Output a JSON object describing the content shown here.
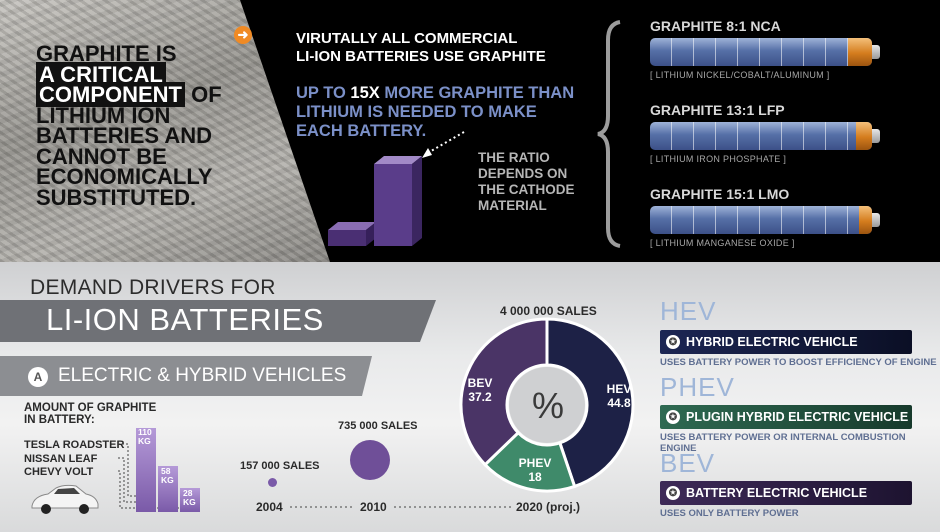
{
  "headline": {
    "part1": "GRAPHITE IS",
    "part2": "A CRITICAL",
    "part3": "COMPONENT",
    "part4": "OF",
    "part5": "LITHIUM ION BATTERIES AND CANNOT BE ECONOMICALLY SUBSTITUTED."
  },
  "intro": {
    "line1": "VIRUTALLY ALL COMMERCIAL",
    "line2": "LI-ION BATTERIES USE GRAPHITE",
    "up_to": "UP TO",
    "ratio_num": "15X",
    "more_text": "MORE GRAPHITE THAN",
    "line4": "LITHIUM IS NEEDED TO MAKE",
    "line5": "EACH BATTERY.",
    "ratio_note": "THE RATIO DEPENDS ON THE CATHODE MATERIAL"
  },
  "batteries": [
    {
      "title": "GRAPHITE 8:1 NCA",
      "chem": "LITHIUM NICKEL/COBALT/ALUMINUM",
      "graphite_fraction": 0.89
    },
    {
      "title": "GRAPHITE 13:1 LFP",
      "chem": "LITHIUM IRON PHOSPHATE",
      "graphite_fraction": 0.93
    },
    {
      "title": "GRAPHITE 15:1 LMO",
      "chem": "LITHIUM MANGANESE OXIDE",
      "graphite_fraction": 0.94
    }
  ],
  "demand": {
    "line1": "DEMAND DRIVERS FOR",
    "line2": "LI-ION BATTERIES"
  },
  "section_a": {
    "letter": "A",
    "title": "ELECTRIC & HYBRID VEHICLES"
  },
  "graphite_amount": {
    "title1": "AMOUNT OF GRAPHITE",
    "title2": "IN BATTERY:",
    "models": [
      "TESLA ROADSTER",
      "NISSAN LEAF",
      "CHEVY VOLT"
    ],
    "values": [
      "110\nKG",
      "58\nKG",
      "28\nKG"
    ]
  },
  "sales": {
    "s2004": "157 000 SALES",
    "s2010": "735 000 SALES",
    "s2020": "4 000 000 SALES",
    "years": [
      "2004",
      "2010",
      "2020 (proj.)"
    ]
  },
  "donut": {
    "center": "%",
    "segments": [
      {
        "label": "HEV",
        "value": "44.8",
        "color": "#1d2146"
      },
      {
        "label": "PHEV",
        "value": "18",
        "color": "#3f8a6a"
      },
      {
        "label": "BEV",
        "value": "37.2",
        "color": "#4a3466"
      }
    ]
  },
  "types": [
    {
      "abbr": "HEV",
      "name": "HYBRID ELECTRIC VEHICLE",
      "desc": "USES BATTERY POWER TO BOOST EFFICIENCY OF ENGINE",
      "color": "#1c2654"
    },
    {
      "abbr": "PHEV",
      "name": "PLUGIN HYBRID ELECTRIC VEHICLE",
      "desc": "USES BATTERY POWER OR INTERNAL COMBUSTION ENGINE",
      "color": "#2f6a52"
    },
    {
      "abbr": "BEV",
      "name": "BATTERY ELECTRIC VEHICLE",
      "desc": "USES ONLY BATTERY POWER",
      "color": "#3e2a58"
    }
  ]
}
